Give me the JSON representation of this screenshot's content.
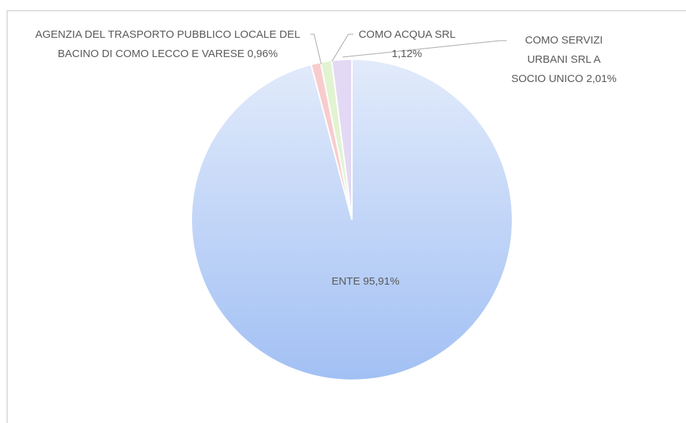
{
  "chart_data": {
    "type": "pie",
    "categories": [
      "ENTE",
      "AGENZIA DEL TRASPORTO PUBBLICO LOCALE DEL BACINO DI COMO LECCO E VARESE",
      "COMO ACQUA SRL",
      "COMO SERVIZI URBANI SRL A SOCIO UNICO"
    ],
    "values": [
      95.91,
      0.96,
      1.12,
      2.01
    ],
    "value_labels": [
      "95,91%",
      "0,96%",
      "1,12%",
      "2,01%"
    ],
    "colors": [
      "#a9c6f6",
      "#f8cccc",
      "#e2f3d2",
      "#e3d9f4"
    ]
  }
}
